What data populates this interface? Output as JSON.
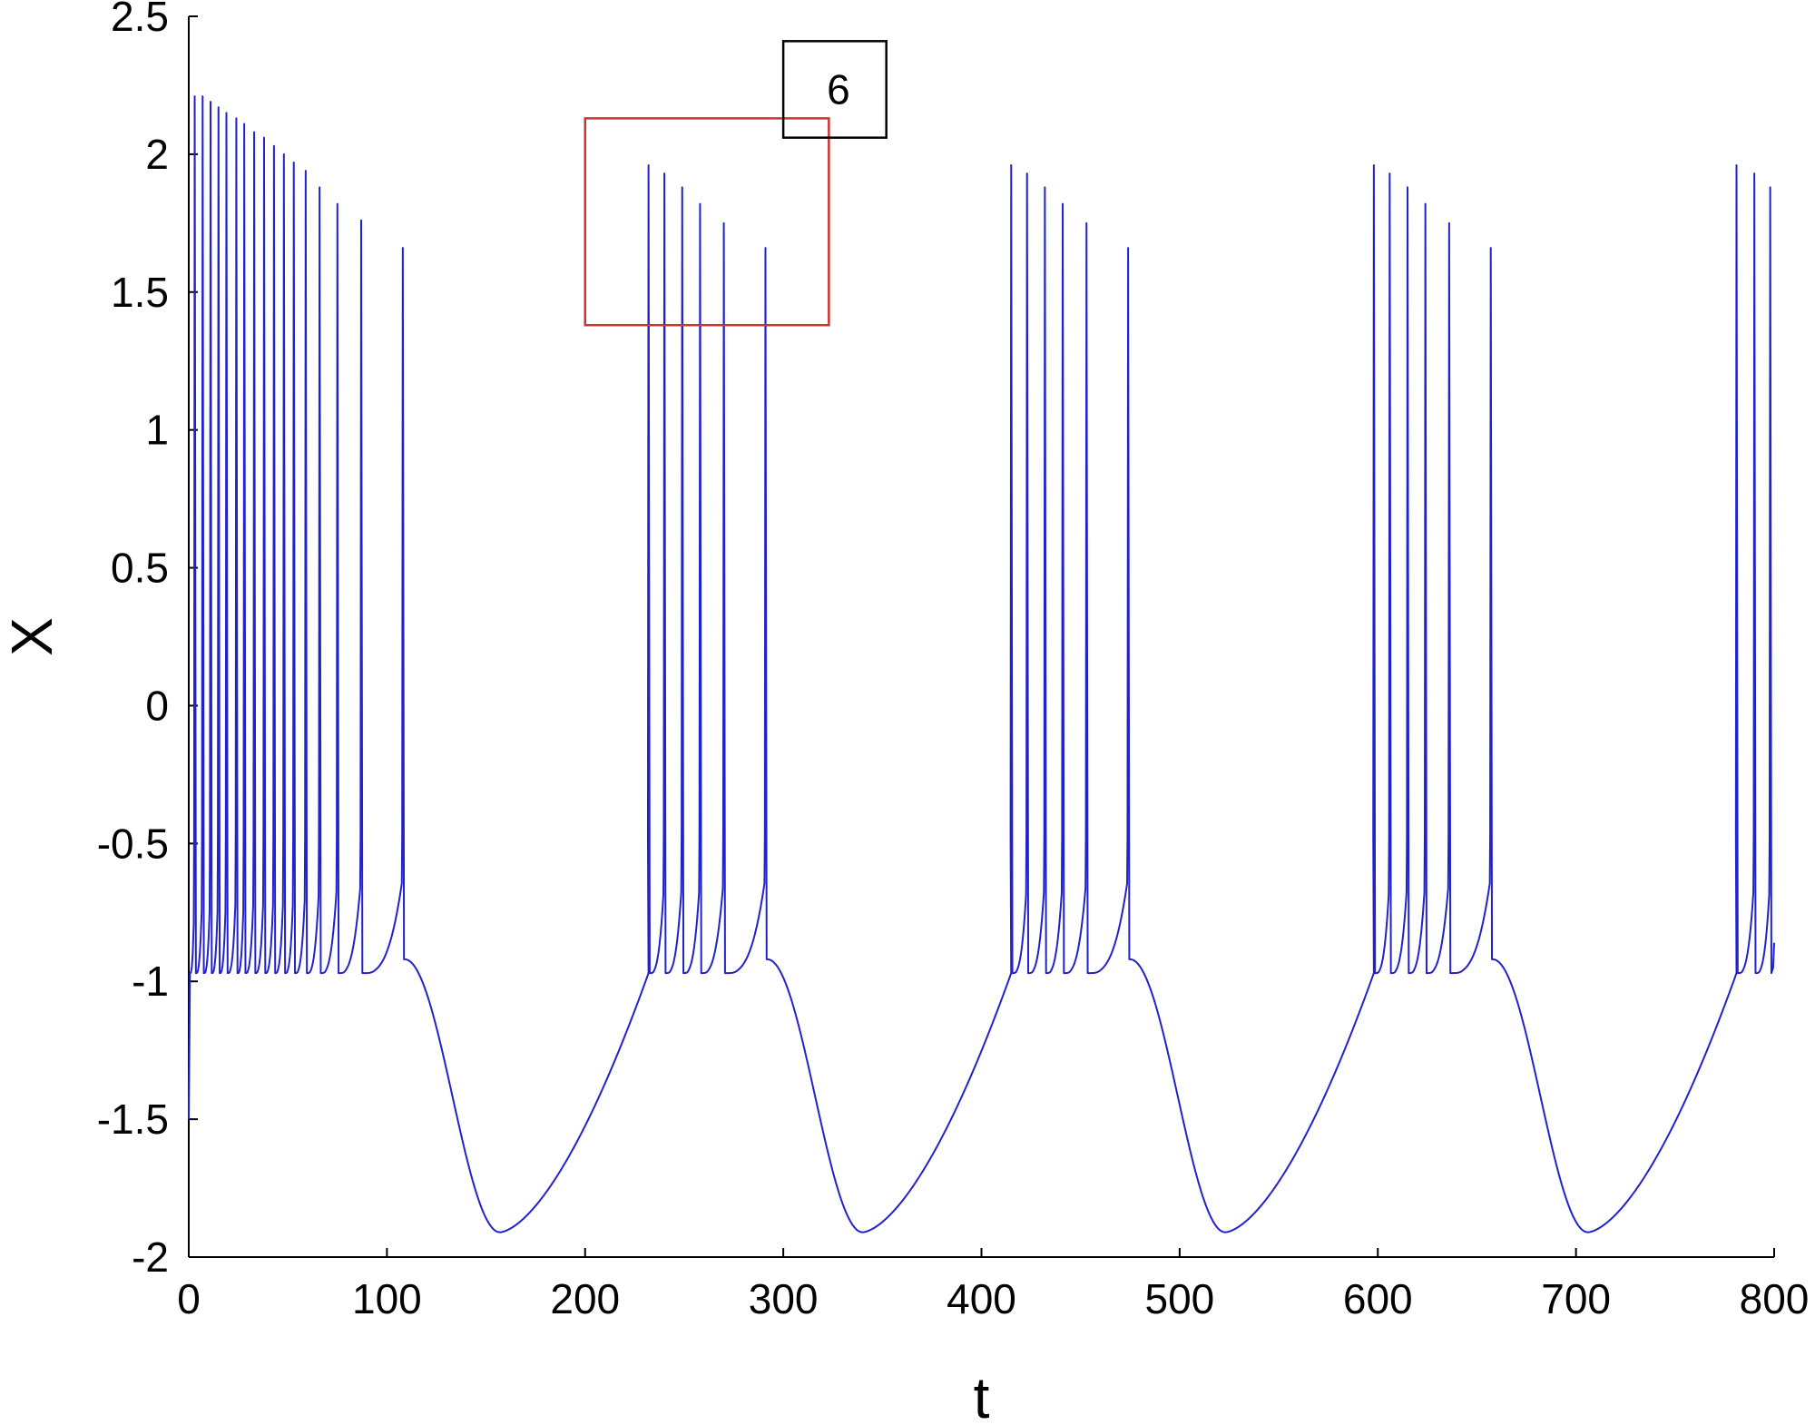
{
  "chart_data": {
    "type": "line",
    "title": "",
    "xlabel": "t",
    "ylabel": "X",
    "xlim": [
      0,
      800
    ],
    "ylim": [
      -2,
      2.5
    ],
    "xticks": [
      0,
      100,
      200,
      300,
      400,
      500,
      600,
      700,
      800
    ],
    "xtick_labels": [
      "0",
      "100",
      "200",
      "300",
      "400",
      "500",
      "600",
      "700",
      "800"
    ],
    "yticks": [
      -2,
      -1.5,
      -1,
      -0.5,
      0,
      0.5,
      1,
      1.5,
      2,
      2.5
    ],
    "ytick_labels": [
      "-2",
      "-1.5",
      "-1",
      "-0.5",
      "0",
      "0.5",
      "1",
      "1.5",
      "2",
      "2.5"
    ],
    "grid": false,
    "line_color": "#2222cc",
    "series": [
      {
        "color": "#2222cc",
        "initial_value": -1.5,
        "spike_trough": -0.97,
        "spike_times": [
          3,
          7,
          11,
          15,
          19,
          24,
          28,
          33,
          38,
          43,
          48,
          53,
          59,
          66,
          75,
          87,
          108,
          232,
          240,
          249,
          258,
          270,
          291,
          415,
          423,
          432,
          441,
          453,
          474,
          598,
          606,
          615,
          624,
          636,
          657,
          781,
          790,
          798
        ],
        "spike_peaks": [
          2.21,
          2.21,
          2.19,
          2.17,
          2.15,
          2.13,
          2.11,
          2.08,
          2.06,
          2.03,
          2.0,
          1.97,
          1.94,
          1.88,
          1.82,
          1.76,
          1.66,
          1.96,
          1.93,
          1.88,
          1.82,
          1.75,
          1.66,
          1.96,
          1.93,
          1.88,
          1.82,
          1.75,
          1.66,
          1.96,
          1.93,
          1.88,
          1.82,
          1.75,
          1.66,
          1.96,
          1.93,
          1.88
        ],
        "burst_end_times": [
          108,
          291,
          474,
          657
        ],
        "post_burst_level": -0.92,
        "trough_times": [
          157,
          340,
          523,
          706
        ],
        "trough_value": -1.91,
        "end_value": -0.86
      }
    ],
    "annotations": [
      {
        "type": "rect",
        "color": "#cc3333",
        "x": [
          200,
          323
        ],
        "y": [
          1.38,
          2.13
        ],
        "label": ""
      },
      {
        "type": "box",
        "color": "#000000",
        "x": [
          300,
          352
        ],
        "y": [
          2.06,
          2.41
        ],
        "label": "6"
      }
    ]
  }
}
